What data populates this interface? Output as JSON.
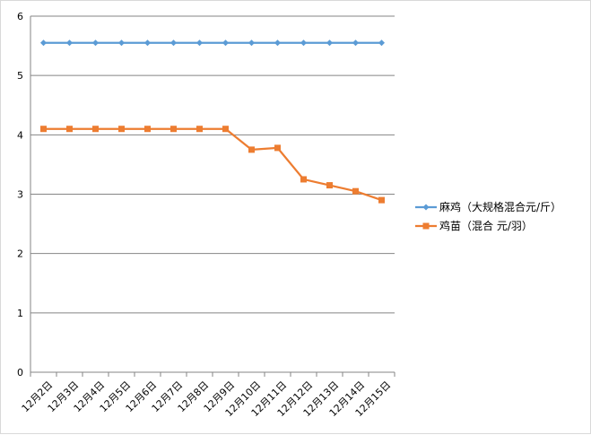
{
  "chart_data": {
    "type": "line",
    "categories": [
      "12月2日",
      "12月3日",
      "12月4日",
      "12月5日",
      "12月6日",
      "12月7日",
      "12月8日",
      "12月9日",
      "12月10日",
      "12月11日",
      "12月12日",
      "12月13日",
      "12月14日",
      "12月15日"
    ],
    "series": [
      {
        "name": "麻鸡（大规格混合元/斤）",
        "color": "#5b9bd5",
        "marker": "diamond",
        "values": [
          5.55,
          5.55,
          5.55,
          5.55,
          5.55,
          5.55,
          5.55,
          5.55,
          5.55,
          5.55,
          5.55,
          5.55,
          5.55,
          5.55
        ]
      },
      {
        "name": "鸡苗（混合 元/羽）",
        "color": "#ed7d31",
        "marker": "square",
        "values": [
          4.1,
          4.1,
          4.1,
          4.1,
          4.1,
          4.1,
          4.1,
          4.1,
          3.75,
          3.78,
          3.25,
          3.15,
          3.05,
          2.9
        ]
      }
    ],
    "ylim": [
      0,
      6
    ],
    "yticks": [
      0,
      1,
      2,
      3,
      4,
      5,
      6
    ],
    "grid": true,
    "legend_position": "right",
    "title": "",
    "xlabel": "",
    "ylabel": ""
  }
}
